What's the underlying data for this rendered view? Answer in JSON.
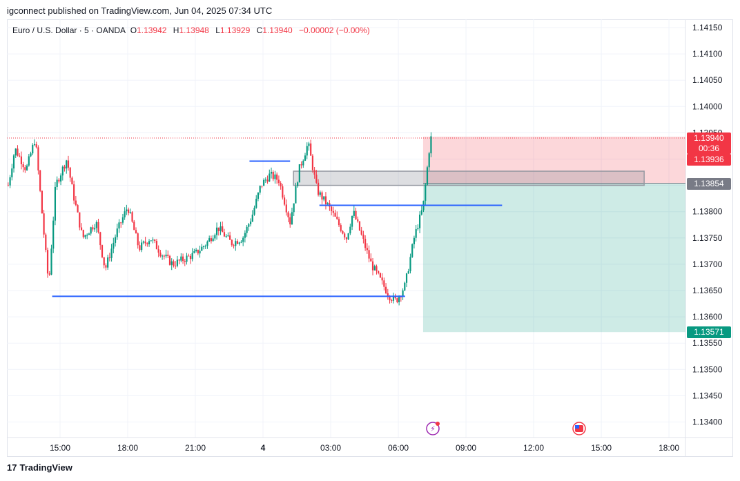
{
  "header": {
    "publisher": "igconnect published on TradingView.com, Jun 04, 2025 07:34 UTC"
  },
  "legend": {
    "symbol": "Euro / U.S. Dollar · 5 · OANDA",
    "o_label": "O",
    "o_value": "1.13942",
    "h_label": "H",
    "h_value": "1.13948",
    "l_label": "L",
    "l_value": "1.13929",
    "c_label": "C",
    "c_value": "1.13940",
    "change": "−0.00002 (−0.00%)"
  },
  "footer": {
    "logo_text": "TradingView"
  },
  "colors": {
    "up": "#089981",
    "down": "#f23645",
    "level_line": "#2962ff",
    "grid": "#f0f3fa"
  },
  "chart_data": {
    "type": "candlestick",
    "ylim": [
      1.1336,
      1.1418
    ],
    "y_ticks": [
      "1.14150",
      "1.14100",
      "1.14050",
      "1.14000",
      "1.13950",
      "1.13900",
      "1.13850",
      "1.13800",
      "1.13750",
      "1.13700",
      "1.13650",
      "1.13600",
      "1.13550",
      "1.13500",
      "1.13450",
      "1.13400"
    ],
    "x_ticks": [
      {
        "label": "15:00",
        "hours": 15
      },
      {
        "label": "18:00",
        "hours": 18
      },
      {
        "label": "21:00",
        "hours": 21
      },
      {
        "label": "4",
        "hours": 24,
        "bold": true
      },
      {
        "label": "03:00",
        "hours": 27
      },
      {
        "label": "06:00",
        "hours": 30
      },
      {
        "label": "09:00",
        "hours": 33
      },
      {
        "label": "12:00",
        "hours": 36
      },
      {
        "label": "15:00",
        "hours": 39
      },
      {
        "label": "18:00",
        "hours": 42
      }
    ],
    "price_path": [
      [
        12.7,
        1.1385
      ],
      [
        13.0,
        1.1392
      ],
      [
        13.5,
        1.1388
      ],
      [
        13.9,
        1.1394
      ],
      [
        14.3,
        1.1375
      ],
      [
        14.5,
        1.1366
      ],
      [
        14.8,
        1.1385
      ],
      [
        15.3,
        1.139
      ],
      [
        15.6,
        1.1383
      ],
      [
        16.0,
        1.1375
      ],
      [
        16.6,
        1.1378
      ],
      [
        17.0,
        1.1369
      ],
      [
        17.5,
        1.1376
      ],
      [
        18.0,
        1.1381
      ],
      [
        18.5,
        1.1373
      ],
      [
        19.0,
        1.1375
      ],
      [
        19.5,
        1.1372
      ],
      [
        20.0,
        1.137
      ],
      [
        20.5,
        1.1371
      ],
      [
        21.0,
        1.1372
      ],
      [
        21.5,
        1.1374
      ],
      [
        22.0,
        1.1377
      ],
      [
        22.6,
        1.1374
      ],
      [
        23.1,
        1.1375
      ],
      [
        23.5,
        1.1379
      ],
      [
        23.9,
        1.1385
      ],
      [
        24.3,
        1.1387
      ],
      [
        24.7,
        1.1386
      ],
      [
        25.2,
        1.1378
      ],
      [
        25.6,
        1.1388
      ],
      [
        26.0,
        1.1393
      ],
      [
        26.4,
        1.1384
      ],
      [
        26.9,
        1.1381
      ],
      [
        27.3,
        1.1378
      ],
      [
        27.7,
        1.1375
      ],
      [
        28.0,
        1.138
      ],
      [
        28.4,
        1.1375
      ],
      [
        28.8,
        1.137
      ],
      [
        29.2,
        1.1367
      ],
      [
        29.6,
        1.1364
      ],
      [
        29.9,
        1.1363
      ],
      [
        30.3,
        1.1366
      ],
      [
        30.7,
        1.1375
      ],
      [
        31.1,
        1.1381
      ],
      [
        31.2,
        1.1385
      ],
      [
        31.4,
        1.1393
      ],
      [
        31.5,
        1.1395
      ]
    ],
    "levels": [
      {
        "price": 1.13639,
        "x_from": 14.65,
        "x_to": 30.3
      },
      {
        "price": 1.13896,
        "x_from": 23.4,
        "x_to": 25.2
      },
      {
        "price": 1.13812,
        "x_from": 26.5,
        "x_to": 34.6
      }
    ],
    "zone": {
      "price_top": 1.13877,
      "price_bottom": 1.1385,
      "x_from": 25.35,
      "x_to": 40.9
    },
    "position": {
      "entry": 1.13854,
      "stop": 1.13936,
      "target": 1.13571,
      "x_from": 31.1
    },
    "last_price": 1.1394,
    "labels": {
      "current": "1.13940",
      "countdown": "00:36",
      "stop": "1.13936",
      "entry": "1.13854",
      "target": "1.13571"
    }
  }
}
